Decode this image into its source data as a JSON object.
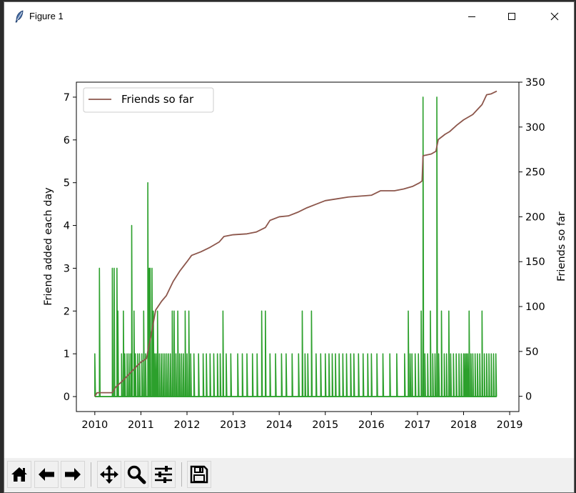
{
  "window": {
    "title": "Figure 1",
    "icon": "feather-icon",
    "controls": [
      "minimize-icon",
      "maximize-icon",
      "close-icon"
    ]
  },
  "toolbar": {
    "buttons": [
      {
        "name": "home",
        "icon": "home-icon"
      },
      {
        "name": "back",
        "icon": "arrow-left-icon"
      },
      {
        "name": "forward",
        "icon": "arrow-right-icon"
      },
      {
        "name": "pan",
        "icon": "move-icon"
      },
      {
        "name": "zoom",
        "icon": "magnifier-icon"
      },
      {
        "name": "configure",
        "icon": "sliders-icon"
      },
      {
        "name": "save",
        "icon": "floppy-disk-icon"
      }
    ]
  },
  "chart_data": {
    "type": "line",
    "title": "",
    "xlabel": "",
    "ylabel": "Friend added each day",
    "y2label": "Friends so far",
    "xlim": [
      2009.6,
      2019.2
    ],
    "ylim": [
      -0.35,
      7.35
    ],
    "y2lim": [
      -17,
      350
    ],
    "xticks": [
      "2010",
      "2011",
      "2012",
      "2013",
      "2014",
      "2015",
      "2016",
      "2017",
      "2018",
      "2019"
    ],
    "yticks": [
      "0",
      "1",
      "2",
      "3",
      "4",
      "5",
      "6",
      "7"
    ],
    "y2ticks": [
      "0",
      "50",
      "100",
      "150",
      "200",
      "250",
      "300",
      "350"
    ],
    "grid": false,
    "legend": {
      "placement": "top-left",
      "entries": [
        "Friends so far"
      ]
    },
    "colors": {
      "daily": "#2ca02c",
      "cumulative": "#8c564b"
    },
    "series": [
      {
        "name": "",
        "axis": "left",
        "color": "#2ca02c",
        "values": [
          [
            2010.0,
            1
          ],
          [
            2010.1,
            3
          ],
          [
            2010.38,
            3
          ],
          [
            2010.42,
            3
          ],
          [
            2010.48,
            3
          ],
          [
            2010.5,
            2
          ],
          [
            2010.58,
            1
          ],
          [
            2010.62,
            2
          ],
          [
            2010.65,
            1
          ],
          [
            2010.7,
            1
          ],
          [
            2010.74,
            1
          ],
          [
            2010.78,
            1
          ],
          [
            2010.8,
            4
          ],
          [
            2010.85,
            2
          ],
          [
            2010.88,
            1
          ],
          [
            2010.93,
            1
          ],
          [
            2010.97,
            1
          ],
          [
            2011.02,
            1
          ],
          [
            2011.06,
            2
          ],
          [
            2011.1,
            1
          ],
          [
            2011.15,
            5
          ],
          [
            2011.18,
            3
          ],
          [
            2011.2,
            3
          ],
          [
            2011.24,
            3
          ],
          [
            2011.27,
            2
          ],
          [
            2011.3,
            1
          ],
          [
            2011.33,
            1
          ],
          [
            2011.36,
            2
          ],
          [
            2011.4,
            1
          ],
          [
            2011.44,
            1
          ],
          [
            2011.48,
            1
          ],
          [
            2011.52,
            1
          ],
          [
            2011.56,
            1
          ],
          [
            2011.6,
            1
          ],
          [
            2011.64,
            1
          ],
          [
            2011.68,
            2
          ],
          [
            2011.72,
            2
          ],
          [
            2011.76,
            1
          ],
          [
            2011.8,
            2
          ],
          [
            2011.84,
            1
          ],
          [
            2011.88,
            1
          ],
          [
            2011.92,
            1
          ],
          [
            2011.96,
            2
          ],
          [
            2012.0,
            1
          ],
          [
            2012.04,
            2
          ],
          [
            2012.08,
            1
          ],
          [
            2012.15,
            1
          ],
          [
            2012.25,
            1
          ],
          [
            2012.35,
            1
          ],
          [
            2012.42,
            1
          ],
          [
            2012.5,
            1
          ],
          [
            2012.58,
            1
          ],
          [
            2012.66,
            1
          ],
          [
            2012.72,
            1
          ],
          [
            2012.78,
            2
          ],
          [
            2012.85,
            1
          ],
          [
            2012.95,
            1
          ],
          [
            2013.1,
            1
          ],
          [
            2013.2,
            1
          ],
          [
            2013.3,
            1
          ],
          [
            2013.42,
            1
          ],
          [
            2013.52,
            1
          ],
          [
            2013.62,
            2
          ],
          [
            2013.7,
            2
          ],
          [
            2013.8,
            1
          ],
          [
            2013.92,
            1
          ],
          [
            2014.05,
            1
          ],
          [
            2014.15,
            1
          ],
          [
            2014.28,
            1
          ],
          [
            2014.42,
            1
          ],
          [
            2014.5,
            2
          ],
          [
            2014.56,
            1
          ],
          [
            2014.62,
            1
          ],
          [
            2014.7,
            2
          ],
          [
            2014.8,
            1
          ],
          [
            2014.9,
            1
          ],
          [
            2015.0,
            1
          ],
          [
            2015.08,
            1
          ],
          [
            2015.15,
            1
          ],
          [
            2015.22,
            1
          ],
          [
            2015.3,
            1
          ],
          [
            2015.38,
            1
          ],
          [
            2015.46,
            1
          ],
          [
            2015.55,
            1
          ],
          [
            2015.62,
            1
          ],
          [
            2015.72,
            1
          ],
          [
            2015.82,
            1
          ],
          [
            2015.92,
            1
          ],
          [
            2016.0,
            1
          ],
          [
            2016.12,
            1
          ],
          [
            2016.25,
            1
          ],
          [
            2016.4,
            1
          ],
          [
            2016.55,
            1
          ],
          [
            2016.72,
            1
          ],
          [
            2016.8,
            2
          ],
          [
            2016.84,
            1
          ],
          [
            2016.88,
            1
          ],
          [
            2016.95,
            1
          ],
          [
            2017.02,
            1
          ],
          [
            2017.08,
            2
          ],
          [
            2017.12,
            7
          ],
          [
            2017.16,
            1
          ],
          [
            2017.22,
            1
          ],
          [
            2017.28,
            2
          ],
          [
            2017.33,
            1
          ],
          [
            2017.38,
            1
          ],
          [
            2017.42,
            7
          ],
          [
            2017.46,
            1
          ],
          [
            2017.52,
            2
          ],
          [
            2017.58,
            1
          ],
          [
            2017.63,
            1
          ],
          [
            2017.68,
            2
          ],
          [
            2017.72,
            1
          ],
          [
            2017.78,
            1
          ],
          [
            2017.84,
            1
          ],
          [
            2017.9,
            1
          ],
          [
            2017.95,
            1
          ],
          [
            2018.0,
            1
          ],
          [
            2018.03,
            1
          ],
          [
            2018.06,
            1
          ],
          [
            2018.09,
            1
          ],
          [
            2018.12,
            2
          ],
          [
            2018.16,
            1
          ],
          [
            2018.2,
            1
          ],
          [
            2018.25,
            1
          ],
          [
            2018.3,
            1
          ],
          [
            2018.35,
            1
          ],
          [
            2018.4,
            2
          ],
          [
            2018.45,
            1
          ],
          [
            2018.5,
            1
          ],
          [
            2018.55,
            1
          ],
          [
            2018.6,
            1
          ],
          [
            2018.65,
            1
          ],
          [
            2018.7,
            1
          ]
        ]
      },
      {
        "name": "Friends so far",
        "axis": "right",
        "color": "#8c564b",
        "values": [
          [
            2010.0,
            0
          ],
          [
            2010.05,
            4
          ],
          [
            2010.38,
            4
          ],
          [
            2010.45,
            10
          ],
          [
            2010.6,
            17
          ],
          [
            2010.75,
            25
          ],
          [
            2010.9,
            33
          ],
          [
            2011.0,
            38
          ],
          [
            2011.12,
            42
          ],
          [
            2011.22,
            68
          ],
          [
            2011.32,
            96
          ],
          [
            2011.45,
            106
          ],
          [
            2011.55,
            112
          ],
          [
            2011.7,
            128
          ],
          [
            2011.85,
            140
          ],
          [
            2012.0,
            150
          ],
          [
            2012.1,
            157
          ],
          [
            2012.3,
            161
          ],
          [
            2012.5,
            166
          ],
          [
            2012.7,
            172
          ],
          [
            2012.8,
            178
          ],
          [
            2013.0,
            180
          ],
          [
            2013.3,
            181
          ],
          [
            2013.5,
            183
          ],
          [
            2013.7,
            188
          ],
          [
            2013.8,
            196
          ],
          [
            2014.0,
            200
          ],
          [
            2014.2,
            201
          ],
          [
            2014.4,
            205
          ],
          [
            2014.6,
            210
          ],
          [
            2014.8,
            214
          ],
          [
            2015.0,
            218
          ],
          [
            2015.25,
            220
          ],
          [
            2015.5,
            222
          ],
          [
            2015.75,
            223
          ],
          [
            2016.0,
            224
          ],
          [
            2016.2,
            229
          ],
          [
            2016.5,
            229
          ],
          [
            2016.7,
            231
          ],
          [
            2016.9,
            234
          ],
          [
            2017.05,
            238
          ],
          [
            2017.1,
            240
          ],
          [
            2017.12,
            268
          ],
          [
            2017.3,
            270
          ],
          [
            2017.4,
            273
          ],
          [
            2017.45,
            286
          ],
          [
            2017.6,
            292
          ],
          [
            2017.7,
            295
          ],
          [
            2017.85,
            302
          ],
          [
            2018.0,
            308
          ],
          [
            2018.2,
            314
          ],
          [
            2018.4,
            325
          ],
          [
            2018.5,
            336
          ],
          [
            2018.6,
            337
          ],
          [
            2018.72,
            340
          ]
        ]
      }
    ]
  }
}
